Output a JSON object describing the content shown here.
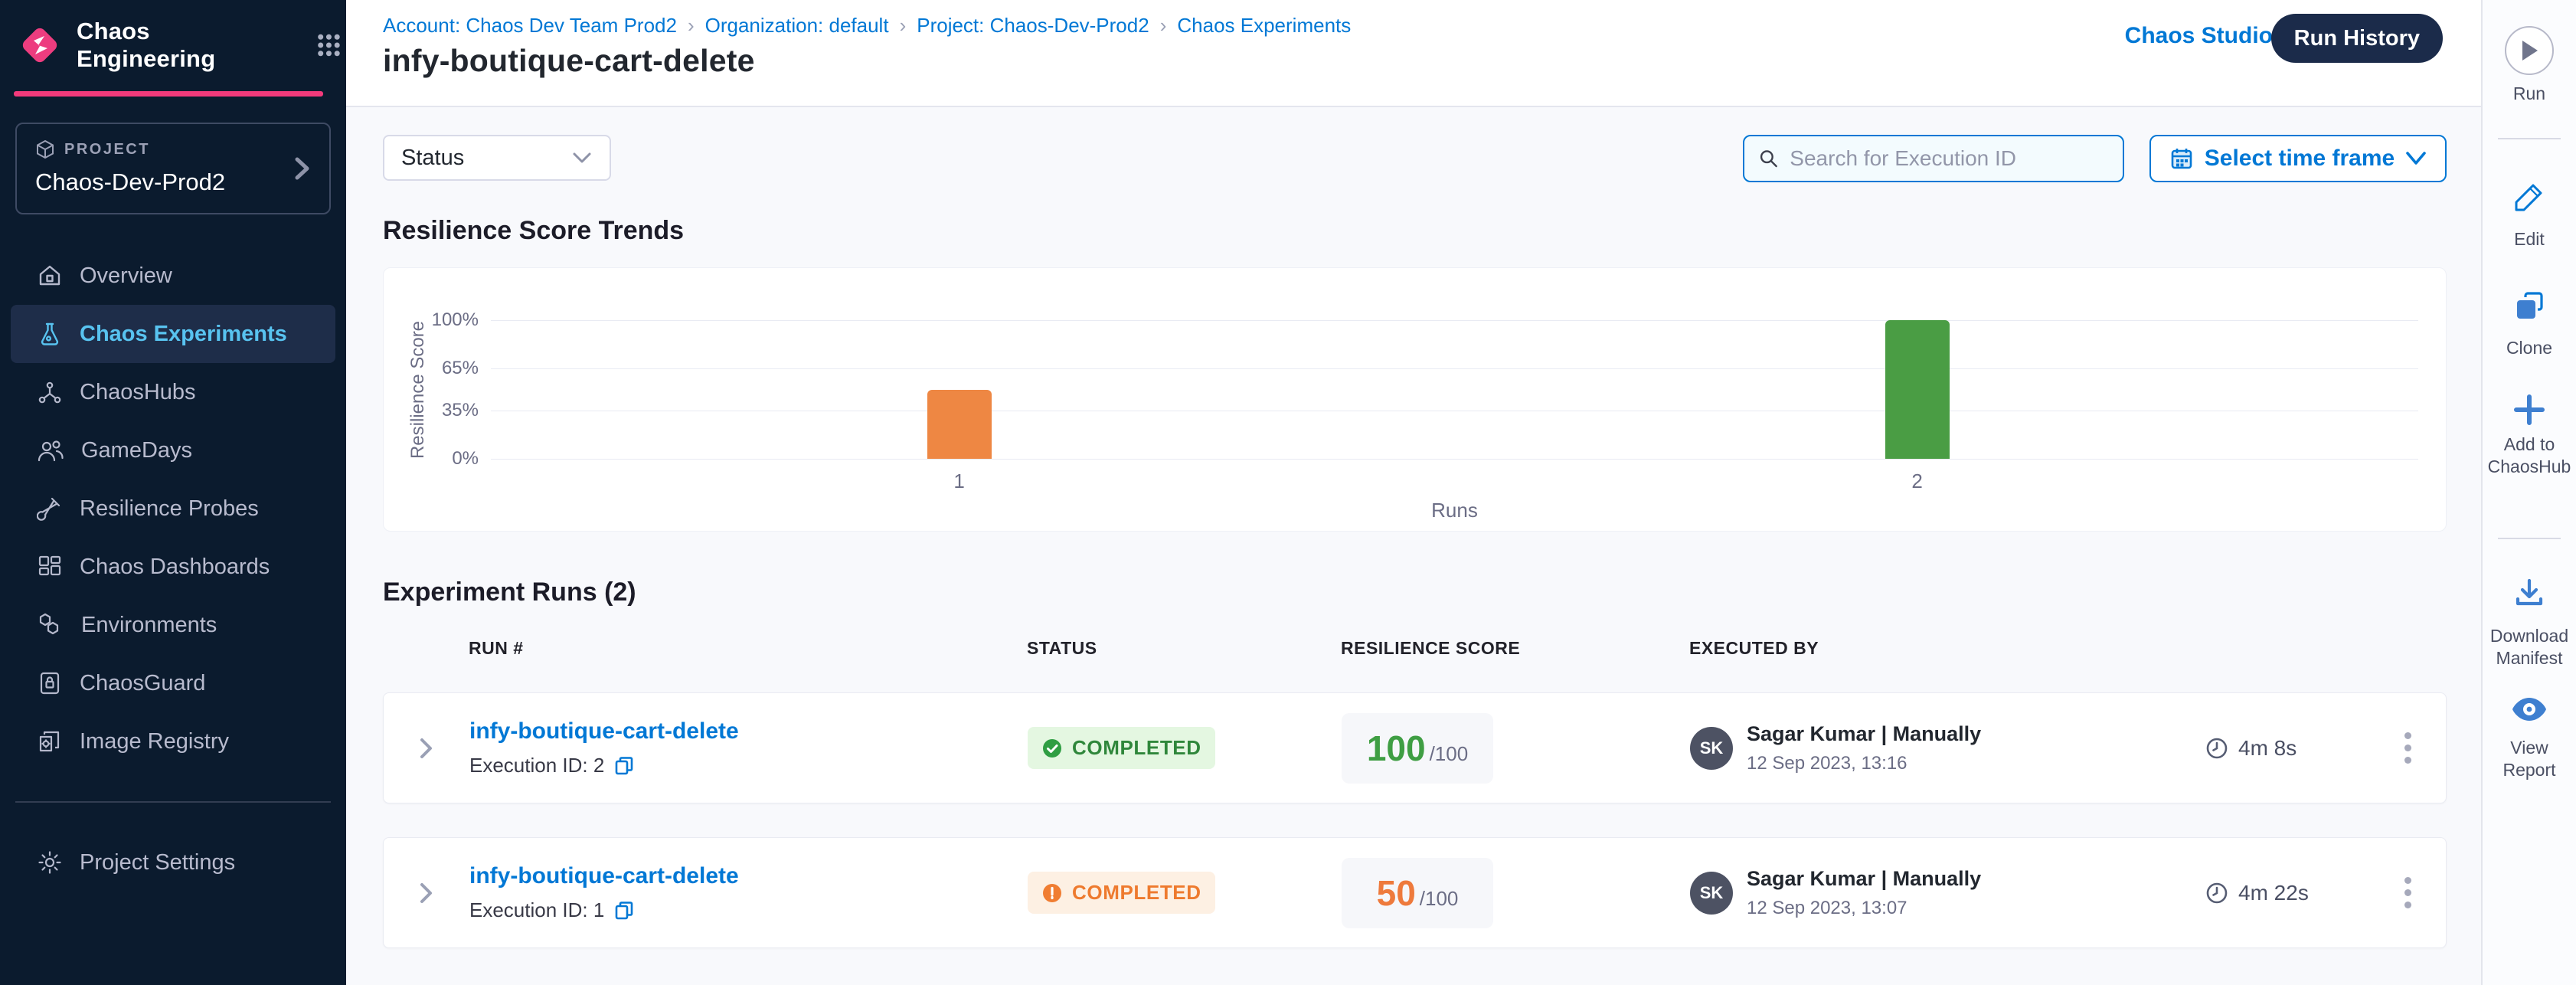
{
  "app": {
    "product": "Chaos Engineering"
  },
  "sidebar": {
    "project_label": "PROJECT",
    "project_name": "Chaos-Dev-Prod2",
    "items": [
      {
        "label": "Overview"
      },
      {
        "label": "Chaos Experiments"
      },
      {
        "label": "ChaosHubs"
      },
      {
        "label": "GameDays"
      },
      {
        "label": "Resilience Probes"
      },
      {
        "label": "Chaos Dashboards"
      },
      {
        "label": "Environments"
      },
      {
        "label": "ChaosGuard"
      },
      {
        "label": "Image Registry"
      }
    ],
    "settings_label": "Project Settings"
  },
  "header": {
    "breadcrumbs": [
      "Account: Chaos Dev Team Prod2",
      "Organization: default",
      "Project: Chaos-Dev-Prod2",
      "Chaos Experiments"
    ],
    "separator": "›",
    "title": "infy-boutique-cart-delete",
    "chaos_studio_label": "Chaos Studio",
    "run_history_label": "Run History"
  },
  "filters": {
    "status_label": "Status",
    "search_placeholder": "Search for Execution ID",
    "time_frame_label": "Select time frame"
  },
  "chart_data": {
    "type": "bar",
    "title": "Resilience Score Trends",
    "categories": [
      "1",
      "2"
    ],
    "values": [
      50,
      100
    ],
    "colors": [
      "#EE8743",
      "#4A9D44"
    ],
    "xlabel": "Runs",
    "ylabel": "Resilience Score",
    "ylim": [
      0,
      100
    ],
    "yticks": [
      "0%",
      "35%",
      "65%",
      "100%"
    ],
    "grid": true,
    "legend": false
  },
  "runs_table": {
    "title": "Experiment Runs (2)",
    "columns": [
      "RUN #",
      "STATUS",
      "RESILIENCE SCORE",
      "EXECUTED BY"
    ],
    "rows": [
      {
        "name": "infy-boutique-cart-delete",
        "execution_id": "Execution ID: 2",
        "status": "COMPLETED",
        "status_kind": "success",
        "score": "100",
        "score_max": "/100",
        "avatar": "SK",
        "executed_by": "Sagar Kumar | Manually",
        "executed_at": "12 Sep 2023, 13:16",
        "duration": "4m 8s"
      },
      {
        "name": "infy-boutique-cart-delete",
        "execution_id": "Execution ID: 1",
        "status": "COMPLETED",
        "status_kind": "warning",
        "score": "50",
        "score_max": "/100",
        "avatar": "SK",
        "executed_by": "Sagar Kumar | Manually",
        "executed_at": "12 Sep 2023, 13:07",
        "duration": "4m 22s"
      }
    ]
  },
  "toolbar": {
    "run_label": "Run",
    "edit_label": "Edit",
    "clone_label": "Clone",
    "add_to_chaoshub_label": "Add to ChaosHub",
    "download_manifest_label": "Download Manifest",
    "view_report_label": "View Report"
  },
  "colors": {
    "primary_blue": "#0278D5",
    "nav_dark": "#0B1B2E",
    "accent_pink": "#F23A7B",
    "success_green": "#2F873B",
    "warning_orange": "#EE7A2E",
    "bar_orange": "#EE8743",
    "bar_green": "#4A9D44"
  }
}
